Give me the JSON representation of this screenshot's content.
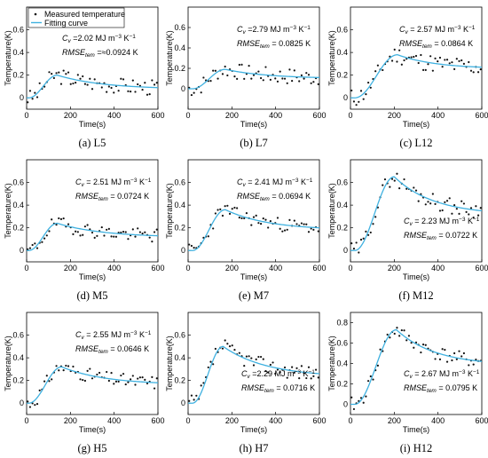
{
  "legend": {
    "measured": "Measured temperature",
    "fitting": "Fitting curve"
  },
  "colors": {
    "fit": "#3fb1e0",
    "dots": "#111111",
    "axis": "#000000"
  },
  "chart_data": [
    {
      "id": "L5",
      "caption": "(a) L5",
      "type": "scatter",
      "xlabel": "Time(s)",
      "ylabel": "Temperature(K)",
      "xlim": [
        0,
        600
      ],
      "ylim": [
        -0.1,
        0.8
      ],
      "yticks": [
        0,
        0.2,
        0.4,
        0.6
      ],
      "xticks": [
        0,
        200,
        400,
        600
      ],
      "cv": "2.02",
      "rmse": "0.0924",
      "rmse_prefix": " =",
      "rmse_approx": true,
      "fit": {
        "peak": 0.2,
        "t_peak": 140,
        "end": 0.09,
        "t0": 10
      },
      "noise": 0.07,
      "npts": 55,
      "seed": 3
    },
    {
      "id": "L7",
      "caption": "(b) L7",
      "type": "scatter",
      "xlabel": "Time(s)",
      "ylabel": "Temperature(K)",
      "xlim": [
        0,
        600
      ],
      "ylim": [
        -0.2,
        0.8
      ],
      "yticks": [
        0,
        0.2,
        0.4,
        0.6
      ],
      "xticks": [
        0,
        200,
        400,
        600
      ],
      "cv": "2.79",
      "rmse": "0.0825",
      "rmse_prefix": " = ",
      "rmse_approx": false,
      "fit": {
        "peak": 0.19,
        "t_peak": 170,
        "end": 0.11,
        "t0": 20
      },
      "noise": 0.08,
      "npts": 55,
      "seed": 7
    },
    {
      "id": "L12",
      "caption": "(c) L12",
      "type": "scatter",
      "xlabel": "Time(s)",
      "ylabel": "Temperature(K)",
      "xlim": [
        0,
        600
      ],
      "ylim": [
        -0.1,
        0.8
      ],
      "yticks": [
        0,
        0.2,
        0.4,
        0.6
      ],
      "xticks": [
        0,
        200,
        400,
        600
      ],
      "cv": "2.57",
      "rmse": "0.0864",
      "rmse_prefix": " = ",
      "rmse_approx": false,
      "fit": {
        "peak": 0.38,
        "t_peak": 215,
        "end": 0.27,
        "t0": 20
      },
      "noise": 0.08,
      "npts": 55,
      "seed": 11
    },
    {
      "id": "M5",
      "caption": "(d) M5",
      "type": "scatter",
      "xlabel": "Time(s)",
      "ylabel": "Temperature(K)",
      "xlim": [
        0,
        600
      ],
      "ylim": [
        -0.1,
        0.8
      ],
      "yticks": [
        0,
        0.2,
        0.4,
        0.6
      ],
      "xticks": [
        0,
        200,
        400,
        600
      ],
      "cv": "2.51",
      "rmse": "0.0724",
      "rmse_prefix": " = ",
      "rmse_approx": false,
      "fit": {
        "peak": 0.24,
        "t_peak": 140,
        "end": 0.13,
        "t0": 10
      },
      "noise": 0.06,
      "npts": 55,
      "seed": 19
    },
    {
      "id": "M7",
      "caption": "(e) M7",
      "type": "scatter",
      "xlabel": "Time(s)",
      "ylabel": "Temperature(K)",
      "xlim": [
        0,
        600
      ],
      "ylim": [
        -0.1,
        0.8
      ],
      "yticks": [
        0,
        0.2,
        0.4,
        0.6
      ],
      "xticks": [
        0,
        200,
        400,
        600
      ],
      "cv": "2.41",
      "rmse": "0.0694",
      "rmse_prefix": " = ",
      "rmse_approx": false,
      "fit": {
        "peak": 0.36,
        "t_peak": 170,
        "end": 0.2,
        "t0": 20
      },
      "noise": 0.06,
      "npts": 55,
      "seed": 23
    },
    {
      "id": "M12",
      "caption": "(f) M12",
      "type": "scatter",
      "xlabel": "Time(s)",
      "ylabel": "Temperature(K)",
      "xlim": [
        0,
        600
      ],
      "ylim": [
        -0.1,
        0.8
      ],
      "yticks": [
        0,
        0.2,
        0.4,
        0.6
      ],
      "xticks": [
        0,
        200,
        400,
        600
      ],
      "cv": "2.23",
      "rmse": "0.0722",
      "rmse_prefix": " = ",
      "rmse_approx": false,
      "fit": {
        "peak": 0.65,
        "t_peak": 200,
        "end": 0.35,
        "t0": 20
      },
      "noise": 0.07,
      "npts": 55,
      "seed": 29
    },
    {
      "id": "H5",
      "caption": "(g) H5",
      "type": "scatter",
      "xlabel": "Time(s)",
      "ylabel": "Temperature(K)",
      "xlim": [
        0,
        600
      ],
      "ylim": [
        -0.1,
        0.8
      ],
      "yticks": [
        0,
        0.2,
        0.4,
        0.6
      ],
      "xticks": [
        0,
        200,
        400,
        600
      ],
      "cv": "2.55",
      "rmse": "0.0646",
      "rmse_prefix": " = ",
      "rmse_approx": false,
      "fit": {
        "peak": 0.32,
        "t_peak": 160,
        "end": 0.18,
        "t0": 10
      },
      "noise": 0.06,
      "npts": 55,
      "seed": 31
    },
    {
      "id": "H7",
      "caption": "(h) H7",
      "type": "scatter",
      "xlabel": "Time(s)",
      "ylabel": "Temperature(K)",
      "xlim": [
        0,
        600
      ],
      "ylim": [
        -0.1,
        0.8
      ],
      "yticks": [
        0,
        0.2,
        0.4,
        0.6
      ],
      "xticks": [
        0,
        200,
        400,
        600
      ],
      "cv": "2.29",
      "rmse": "0.0716",
      "rmse_prefix": " = ",
      "rmse_approx": false,
      "fit": {
        "peak": 0.5,
        "t_peak": 160,
        "end": 0.26,
        "t0": 20
      },
      "noise": 0.07,
      "npts": 55,
      "seed": 37
    },
    {
      "id": "H12",
      "caption": "(i) H12",
      "type": "scatter",
      "xlabel": "Time(s)",
      "ylabel": "Temperature(K)",
      "xlim": [
        0,
        600
      ],
      "ylim": [
        -0.1,
        0.9
      ],
      "yticks": [
        0,
        0.2,
        0.4,
        0.6,
        0.8
      ],
      "xticks": [
        0,
        200,
        400,
        600
      ],
      "cv": "2.67",
      "rmse": "0.0795",
      "rmse_prefix": " = ",
      "rmse_approx": false,
      "fit": {
        "peak": 0.73,
        "t_peak": 210,
        "end": 0.42,
        "t0": 20
      },
      "noise": 0.07,
      "npts": 55,
      "seed": 41
    }
  ]
}
